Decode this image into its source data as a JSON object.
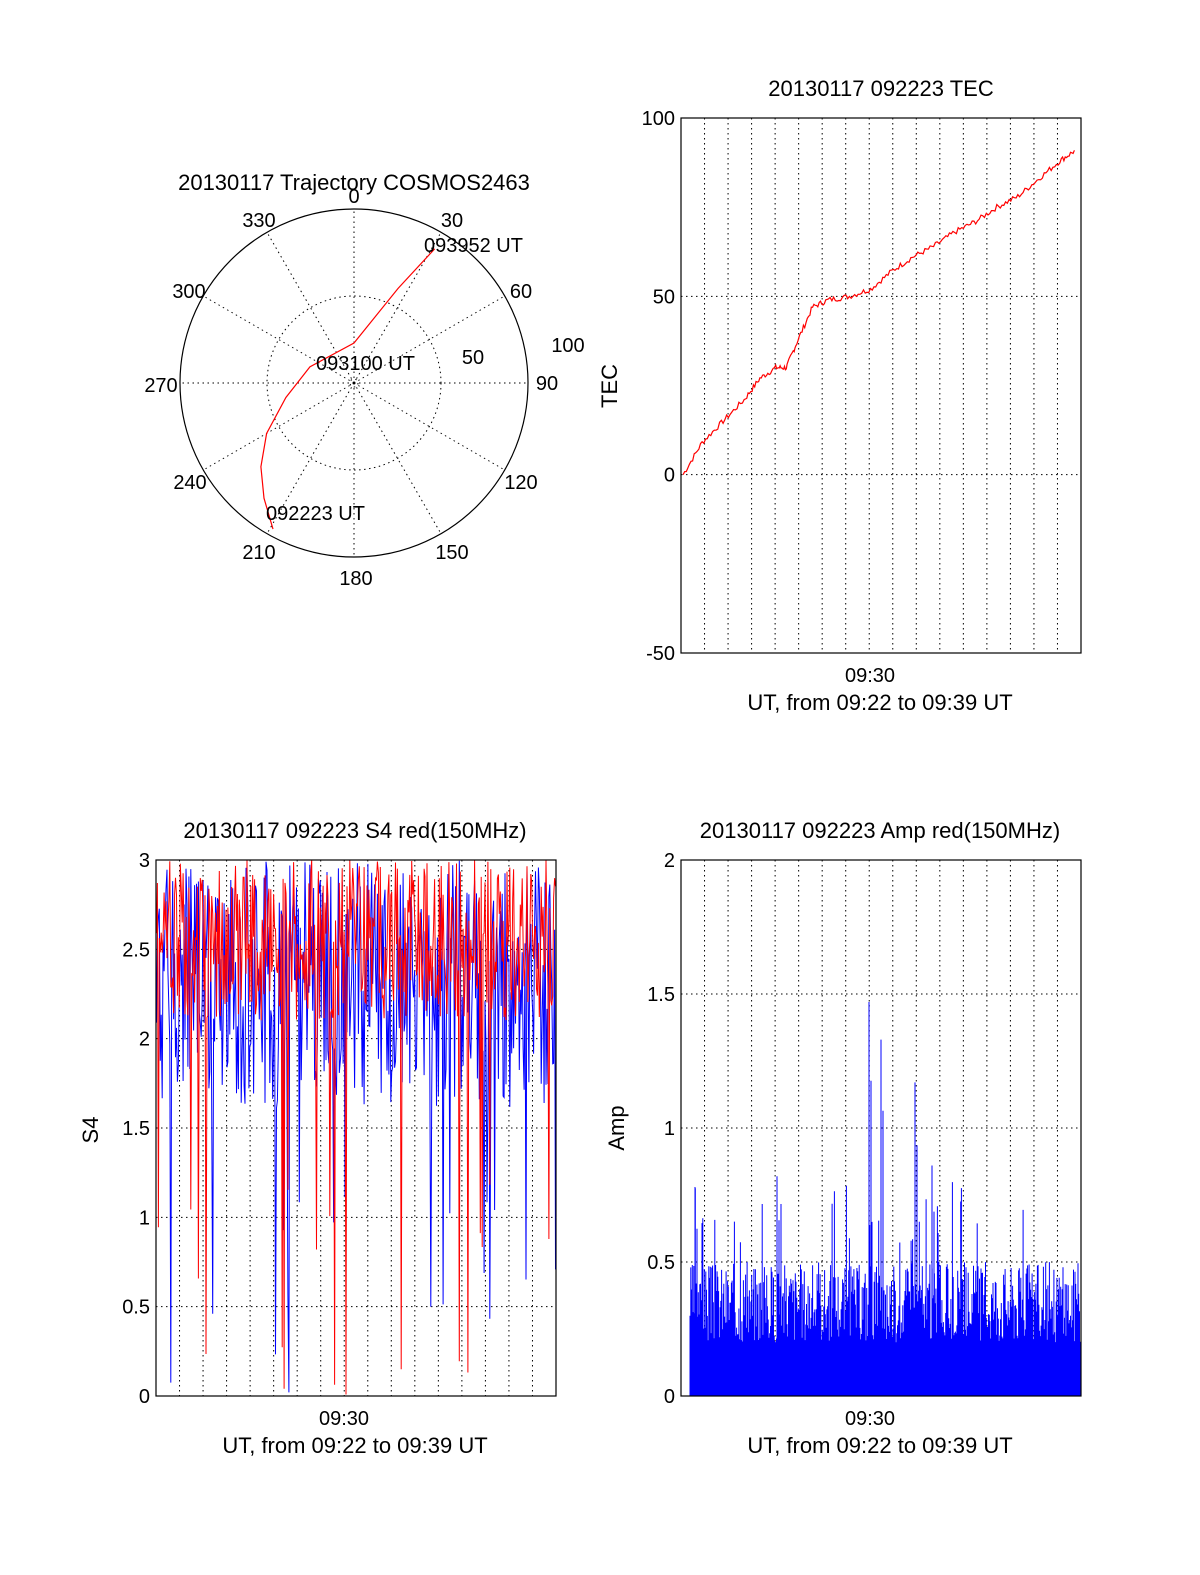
{
  "chart_data": [
    {
      "type": "polar",
      "title": "20130117 Trajectory COSMOS2463",
      "angle_labels": [
        "0",
        "30",
        "60",
        "90",
        "120",
        "150",
        "180",
        "210",
        "240",
        "270",
        "300",
        "330"
      ],
      "radial_labels": [
        "50",
        "100"
      ],
      "radial_max": 100,
      "trajectory_color": "#ff0000",
      "trajectory": {
        "azimuth_deg": [
          209,
          218,
          228,
          240,
          258,
          290,
          0,
          25,
          31
        ],
        "radius": [
          96,
          84,
          72,
          58,
          40,
          27,
          23,
          60,
          90
        ]
      },
      "annotations": [
        "093952 UT",
        "093100 UT",
        "092223 UT"
      ]
    },
    {
      "type": "line",
      "title": "20130117 092223 TEC",
      "xlabel": "UT, from 09:22 to 09:39 UT",
      "ylabel": "TEC",
      "x_tick_label": "09:30",
      "y_ticks": [
        "100",
        "50",
        "0",
        "-50"
      ],
      "ylim": [
        -50,
        100
      ],
      "series_color": "#ff0000",
      "x_minutes": [
        0.2,
        2,
        4,
        6,
        7.5,
        9,
        10,
        11,
        12.5,
        14,
        16,
        18,
        20,
        22,
        24,
        26,
        28,
        30,
        32,
        34,
        36,
        37.5
      ],
      "values": [
        0,
        9,
        15,
        21,
        27,
        30,
        30,
        37,
        47,
        49,
        50,
        52,
        57,
        61,
        64,
        68,
        71,
        75,
        78,
        83,
        88,
        91
      ]
    },
    {
      "type": "line",
      "title": "20130117 092223 S4 red(150MHz)",
      "xlabel": "UT, from 09:22 to 09:39 UT",
      "ylabel": "S4",
      "x_tick_label": "09:30",
      "y_ticks": [
        "3",
        "2.5",
        "2",
        "1.5",
        "1",
        "0.5",
        "0"
      ],
      "ylim": [
        0,
        3
      ],
      "series": [
        {
          "color": "#0000ff",
          "note_values_fluctuate": [
            1.5,
            3
          ]
        },
        {
          "color": "#ff0000",
          "note_values_fluctuate": [
            2.0,
            3
          ]
        }
      ]
    },
    {
      "type": "bar",
      "title": "20130117 092223 Amp red(150MHz)",
      "xlabel": "UT, from 09:22 to 09:39 UT",
      "ylabel": "Amp",
      "x_tick_label": "09:30",
      "y_ticks": [
        "2",
        "1.5",
        "1",
        "0.5",
        "0"
      ],
      "ylim": [
        0,
        2
      ],
      "series_color": "#0000ff",
      "peaks": [
        1.47,
        1.33,
        1.17,
        0.86,
        0.82,
        0.78
      ]
    }
  ]
}
